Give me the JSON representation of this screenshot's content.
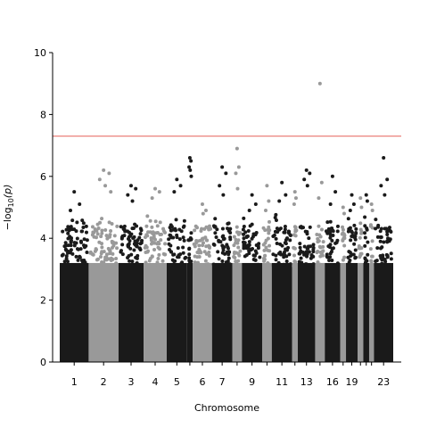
{
  "chart_data": {
    "type": "scatter",
    "subtype": "manhattan",
    "xlabel": "Chromosome",
    "ylabel_parts": {
      "prefix": "−log",
      "sub": "10",
      "suffix": "(p)"
    },
    "ylim": [
      0,
      10
    ],
    "yticks": [
      "0",
      "2",
      "4",
      "6",
      "8",
      "10"
    ],
    "threshold": {
      "value": 7.3,
      "color": "#e8736c"
    },
    "colors": {
      "dark": "#1a1a1a",
      "light": "#999999"
    },
    "chromosomes": [
      {
        "label": "1",
        "show": true,
        "color": "dark",
        "top": [
          5.5,
          5.1,
          4.9
        ]
      },
      {
        "label": "2",
        "show": true,
        "color": "light",
        "top": [
          6.2,
          6.1,
          5.9,
          5.7,
          5.5
        ]
      },
      {
        "label": "3",
        "show": true,
        "color": "dark",
        "top": [
          5.7,
          5.6,
          5.4,
          5.2
        ]
      },
      {
        "label": "4",
        "show": true,
        "color": "light",
        "top": [
          5.6,
          5.5,
          5.3
        ]
      },
      {
        "label": "5",
        "show": true,
        "color": "dark",
        "top": [
          5.9,
          5.7,
          5.5
        ]
      },
      {
        "label": "",
        "show": false,
        "color": "dark",
        "top": [
          6.6,
          6.5,
          6.3,
          6.2,
          6.0
        ]
      },
      {
        "label": "6",
        "show": true,
        "color": "light",
        "top": [
          5.1,
          4.9
        ]
      },
      {
        "label": "7",
        "show": true,
        "color": "dark",
        "top": [
          6.3,
          6.1,
          5.7,
          5.4
        ]
      },
      {
        "label": "",
        "show": false,
        "color": "light",
        "top": [
          6.9,
          6.3,
          6.1,
          5.6
        ]
      },
      {
        "label": "9",
        "show": true,
        "color": "dark",
        "top": [
          5.4,
          5.1,
          4.9
        ]
      },
      {
        "label": "",
        "show": false,
        "color": "light",
        "top": [
          5.7,
          5.2,
          4.9
        ]
      },
      {
        "label": "11",
        "show": true,
        "color": "dark",
        "top": [
          5.8,
          5.4,
          5.2
        ]
      },
      {
        "label": "",
        "show": false,
        "color": "light",
        "top": [
          5.5,
          5.3,
          5.1
        ]
      },
      {
        "label": "13",
        "show": true,
        "color": "dark",
        "top": [
          6.2,
          6.1,
          5.9,
          5.7
        ]
      },
      {
        "label": "",
        "show": false,
        "color": "light",
        "top": [
          9.0,
          5.8,
          5.3
        ]
      },
      {
        "label": "16",
        "show": true,
        "color": "dark",
        "top": [
          6.0,
          5.5,
          5.1
        ]
      },
      {
        "label": "",
        "show": false,
        "color": "light",
        "top": [
          5.0,
          4.8
        ]
      },
      {
        "label": "19",
        "show": true,
        "color": "dark",
        "top": [
          5.4,
          5.1,
          4.9
        ]
      },
      {
        "label": "",
        "show": false,
        "color": "light",
        "top": [
          5.3,
          5.0
        ]
      },
      {
        "label": "",
        "show": false,
        "color": "dark",
        "top": [
          5.4,
          5.2
        ]
      },
      {
        "label": "",
        "show": false,
        "color": "light",
        "top": [
          5.1,
          4.9
        ]
      },
      {
        "label": "23",
        "show": true,
        "color": "dark",
        "top": [
          6.6,
          5.9,
          5.7,
          5.4
        ]
      }
    ]
  }
}
